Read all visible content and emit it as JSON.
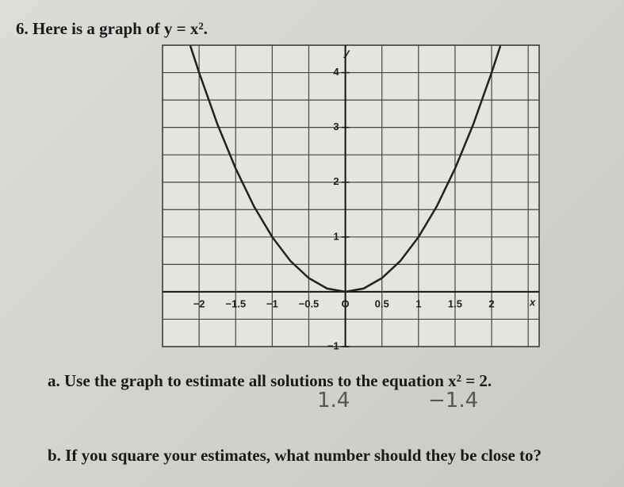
{
  "question": "6. Here is a graph of y = x².",
  "chart_data": {
    "type": "line",
    "x_label": "x",
    "y_label": "y",
    "xlim": [
      -2.5,
      2.65
    ],
    "ylim": [
      -1,
      4.5
    ],
    "xticks": [
      {
        "value": -2,
        "label": "−2"
      },
      {
        "value": -1.5,
        "label": "−1.5"
      },
      {
        "value": -1,
        "label": "−1"
      },
      {
        "value": -0.5,
        "label": "−0.5"
      },
      {
        "value": 0,
        "label": "O"
      },
      {
        "value": 0.5,
        "label": "0.5"
      },
      1,
      1.5,
      2
    ],
    "yticks": [
      {
        "value": -1,
        "label": "−1"
      },
      1,
      2,
      3,
      4
    ],
    "grid": true,
    "series": [
      {
        "color": "#222222",
        "x": [
          -2.12,
          -2,
          -1.75,
          -1.5,
          -1.25,
          -1,
          -0.75,
          -0.5,
          -0.25,
          0,
          0.25,
          0.5,
          0.75,
          1,
          1.25,
          1.5,
          1.75,
          2,
          2.12
        ],
        "values": [
          4.49,
          4,
          3.06,
          2.25,
          1.56,
          1,
          0.56,
          0.25,
          0.06,
          0,
          0.06,
          0.25,
          0.56,
          1,
          1.56,
          2.25,
          3.06,
          4,
          4.49
        ]
      }
    ]
  },
  "part_a": {
    "text": "a. Use the graph to estimate all solutions to the equation x² = 2.",
    "answers": [
      "1.4",
      "−1.4"
    ]
  },
  "part_b": {
    "text": "b. If you square your estimates, what number should they be close to?"
  }
}
